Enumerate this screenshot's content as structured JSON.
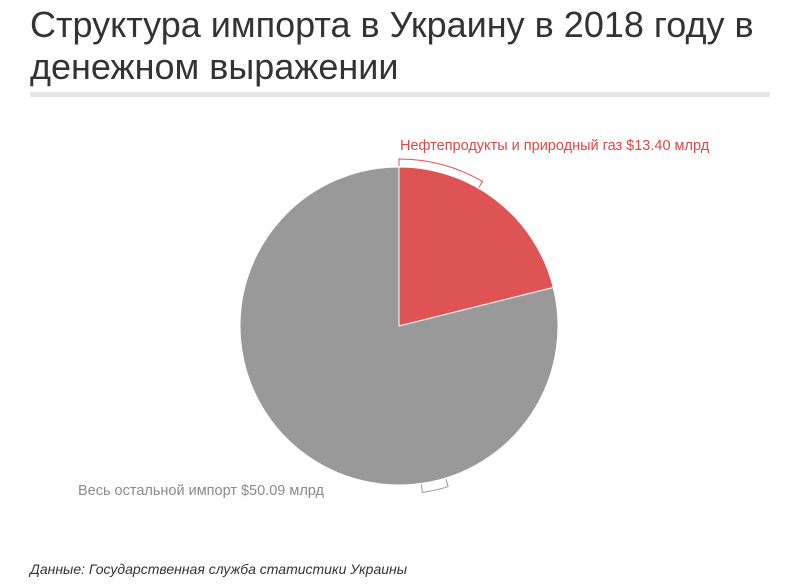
{
  "header": {
    "title": "Структура импорта в Украину в 2018 году в денежном выражении"
  },
  "chart_data": {
    "type": "pie",
    "title": "Структура импорта в Украину в 2018 году в денежном выражении",
    "unit": "млрд USD",
    "slices": [
      {
        "category": "Нефтепродукты и природный газ",
        "value": 13.4,
        "label": "Нефтепродукты и природный газ $13.40 млрд",
        "color": "#de5353"
      },
      {
        "category": "Весь остальной импорт",
        "value": 50.09,
        "label": "Весь остальной импорт $50.09 млрд",
        "color": "#999999"
      }
    ]
  },
  "footer": {
    "source": "Данные: Государственная служба статистики Украины"
  }
}
